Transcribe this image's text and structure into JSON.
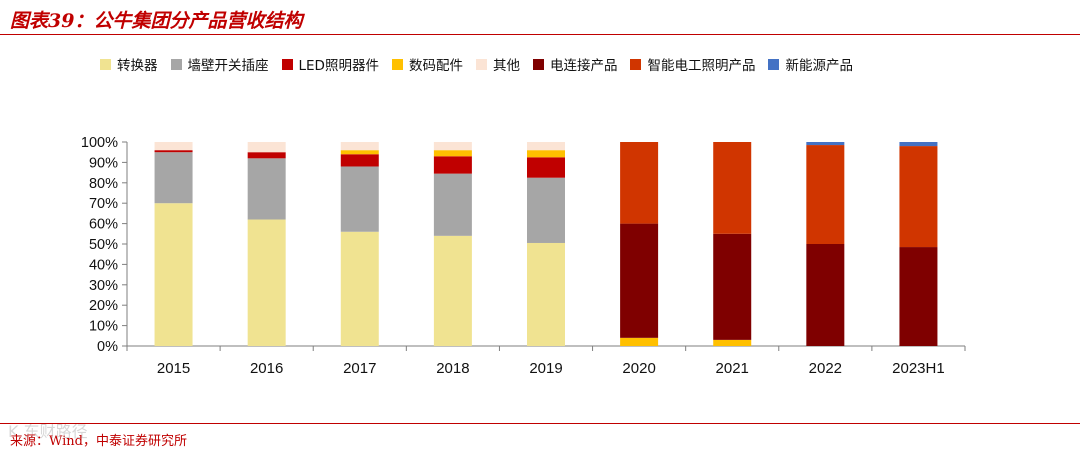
{
  "title": "图表39：公牛集团分产品营收结构",
  "source": "来源：Wind，中泰证券研究所",
  "watermark": "K 东财路径",
  "chart_data": {
    "type": "bar",
    "stacked": true,
    "title": "图表39：公牛集团分产品营收结构",
    "xlabel": "",
    "ylabel": "",
    "ylim": [
      0,
      100
    ],
    "y_ticks": [
      0,
      10,
      20,
      30,
      40,
      50,
      60,
      70,
      80,
      90,
      100
    ],
    "y_tick_labels": [
      "0%",
      "10%",
      "20%",
      "30%",
      "40%",
      "50%",
      "60%",
      "70%",
      "80%",
      "90%",
      "100%"
    ],
    "legend_position": "top",
    "categories": [
      "2015",
      "2016",
      "2017",
      "2018",
      "2019",
      "2020",
      "2021",
      "2022",
      "2023H1"
    ],
    "series": [
      {
        "name": "转换器",
        "color": "#f0e391",
        "values": [
          70,
          62,
          56,
          54,
          50.5,
          0,
          0,
          0,
          0
        ]
      },
      {
        "name": "墙壁开关插座",
        "color": "#a6a6a6",
        "values": [
          25,
          30,
          32,
          30.5,
          32,
          0,
          0,
          0,
          0
        ]
      },
      {
        "name": "LED照明器件",
        "color": "#c00000",
        "values": [
          1,
          3,
          6,
          8.5,
          10,
          0,
          0,
          0,
          0
        ]
      },
      {
        "name": "数码配件",
        "color": "#ffc000",
        "values": [
          0,
          0,
          2,
          3,
          3.5,
          4,
          3,
          0,
          0
        ]
      },
      {
        "name": "其他",
        "color": "#fbe4d5",
        "values": [
          4,
          5,
          4,
          4,
          4,
          0,
          0,
          0,
          0
        ]
      },
      {
        "name": "电连接产品",
        "color": "#7f0000",
        "values": [
          0,
          0,
          0,
          0,
          0,
          56,
          52,
          50,
          48.5
        ]
      },
      {
        "name": "智能电工照明产品",
        "color": "#d03500",
        "values": [
          0,
          0,
          0,
          0,
          0,
          40,
          45,
          48.5,
          49.5
        ]
      },
      {
        "name": "新能源产品",
        "color": "#4472c4",
        "values": [
          0,
          0,
          0,
          0,
          0,
          0,
          0,
          1.5,
          2
        ]
      }
    ]
  }
}
